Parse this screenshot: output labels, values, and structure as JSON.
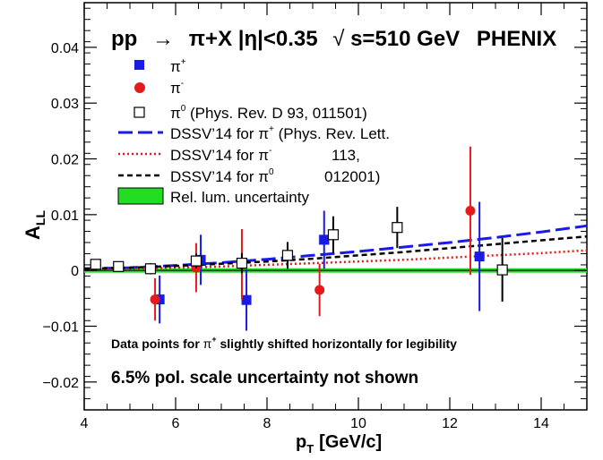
{
  "chart_data": {
    "type": "scatter",
    "title": "pp → π+X |η|<0.35 √s=510 GeV  PHENIX",
    "title_parts": {
      "pp": "pp",
      "arrow": "→",
      "reaction": "π+X |η|<0.35",
      "sqrt": "√",
      "energy": "s=510 GeV",
      "experiment": "PHENIX"
    },
    "xlabel": "p",
    "xlabel_sub": "T",
    "xlabel_unit": "[GeV/c]",
    "ylabel": "A",
    "ylabel_sub": "LL",
    "xlim": [
      4,
      15
    ],
    "ylim": [
      -0.025,
      0.048
    ],
    "x_ticks": [
      4,
      6,
      8,
      10,
      12,
      14
    ],
    "x_tick_labels": [
      "4",
      "6",
      "8",
      "10",
      "12",
      "14"
    ],
    "y_ticks": [
      -0.02,
      -0.01,
      0,
      0.01,
      0.02,
      0.03,
      0.04
    ],
    "y_tick_labels": [
      "−0.02",
      "−0.01",
      "0",
      "0.01",
      "0.02",
      "0.03",
      "0.04"
    ],
    "grid": false,
    "legend_position": "top-left inside plot",
    "legend": {
      "pi_plus": {
        "text": "π",
        "sup": "+"
      },
      "pi_minus": {
        "text": "π",
        "sup": "-"
      },
      "pi_zero": {
        "text": "π",
        "sup": "0",
        "suffix": " (Phys. Rev. D 93, 011501)"
      },
      "dssv_plus": {
        "text": "DSSV’14 for π",
        "sup": "+",
        "suffix": " (Phys. Rev. Lett."
      },
      "dssv_minus": {
        "text": "DSSV’14 for π",
        "sup": "-",
        "suffix": "113,"
      },
      "dssv_zero": {
        "text": "DSSV’14 for π",
        "sup": "0",
        "suffix": "012001)"
      },
      "rel_lum": {
        "text": "Rel. lum. uncertainty"
      }
    },
    "annotations": {
      "shift_note_a": "Data points for ",
      "shift_note_pi": "π",
      "shift_note_sup": "+",
      "shift_note_b": " slightly shifted horizontally for legibility",
      "pol_note": "6.5% pol. scale uncertainty not shown"
    },
    "series": [
      {
        "name": "π+",
        "color": "#1a1ae6",
        "marker": "filled-square",
        "points": [
          {
            "x": 5.65,
            "y": -0.0052,
            "err": 0.0043
          },
          {
            "x": 6.55,
            "y": 0.0019,
            "err": 0.0045
          },
          {
            "x": 7.55,
            "y": -0.0053,
            "err": 0.0055
          },
          {
            "x": 9.25,
            "y": 0.0055,
            "err": 0.0052
          },
          {
            "x": 12.65,
            "y": 0.0025,
            "err": 0.0098
          }
        ],
        "sys_boxes": [
          {
            "x": 9.25,
            "y": 0.0055,
            "half_w": 0.12,
            "half_h": 0.0009
          }
        ]
      },
      {
        "name": "π-",
        "color": "#e61a1a",
        "marker": "filled-circle",
        "points": [
          {
            "x": 5.55,
            "y": -0.0052,
            "err": 0.0038
          },
          {
            "x": 6.45,
            "y": 0.0005,
            "err": 0.0044
          },
          {
            "x": 7.45,
            "y": 0.0011,
            "err": 0.0063
          },
          {
            "x": 9.15,
            "y": -0.0035,
            "err": 0.0047
          },
          {
            "x": 12.45,
            "y": 0.0107,
            "err": 0.0115
          }
        ],
        "sys_boxes": [
          {
            "x": 7.45,
            "y": 0.0011,
            "half_w": 0.1,
            "half_h": 0.0007
          },
          {
            "x": 9.15,
            "y": -0.0035,
            "half_w": 0.1,
            "half_h": 0.0005
          }
        ]
      },
      {
        "name": "π0",
        "color": "#000000",
        "marker": "open-square",
        "points": [
          {
            "x": 4.25,
            "y": 0.0011,
            "err": 0.0009
          },
          {
            "x": 4.75,
            "y": 0.0007,
            "err": 0.0009
          },
          {
            "x": 5.45,
            "y": 0.0003,
            "err": 0.001
          },
          {
            "x": 6.45,
            "y": 0.0017,
            "err": 0.0013
          },
          {
            "x": 7.45,
            "y": 0.0013,
            "err": 0.0018
          },
          {
            "x": 8.45,
            "y": 0.0027,
            "err": 0.0024
          },
          {
            "x": 9.45,
            "y": 0.0064,
            "err": 0.0033
          },
          {
            "x": 10.85,
            "y": 0.0077,
            "err": 0.0037
          },
          {
            "x": 13.15,
            "y": 0.0001,
            "err": 0.0057
          }
        ]
      }
    ],
    "curves": [
      {
        "name": "DSSV’14 for π+",
        "color": "#1a1ae6",
        "style": "long-dash",
        "x": [
          4,
          5,
          6,
          7,
          8,
          9,
          10,
          11,
          12,
          13,
          14,
          15
        ],
        "y": [
          0.0003,
          0.0005,
          0.0009,
          0.0014,
          0.002,
          0.0027,
          0.0034,
          0.0042,
          0.005,
          0.0059,
          0.0069,
          0.008
        ]
      },
      {
        "name": "DSSV’14 for π-",
        "color": "#e61a1a",
        "style": "dotted",
        "x": [
          4,
          5,
          6,
          7,
          8,
          9,
          10,
          11,
          12,
          13,
          14,
          15
        ],
        "y": [
          0.0002,
          0.0003,
          0.0005,
          0.0007,
          0.001,
          0.0013,
          0.0016,
          0.0019,
          0.0023,
          0.0027,
          0.0031,
          0.0036
        ]
      },
      {
        "name": "DSSV’14 for π0",
        "color": "#000000",
        "style": "short-dash",
        "x": [
          4,
          5,
          6,
          7,
          8,
          9,
          10,
          11,
          12,
          13,
          14,
          15
        ],
        "y": [
          0.0003,
          0.0005,
          0.0008,
          0.0012,
          0.0016,
          0.0021,
          0.0027,
          0.0033,
          0.004,
          0.0047,
          0.0054,
          0.0061
        ]
      }
    ],
    "rel_lum_band": {
      "color": "#22dd22",
      "ymin": -0.0004,
      "ymax": 0.0004
    }
  }
}
